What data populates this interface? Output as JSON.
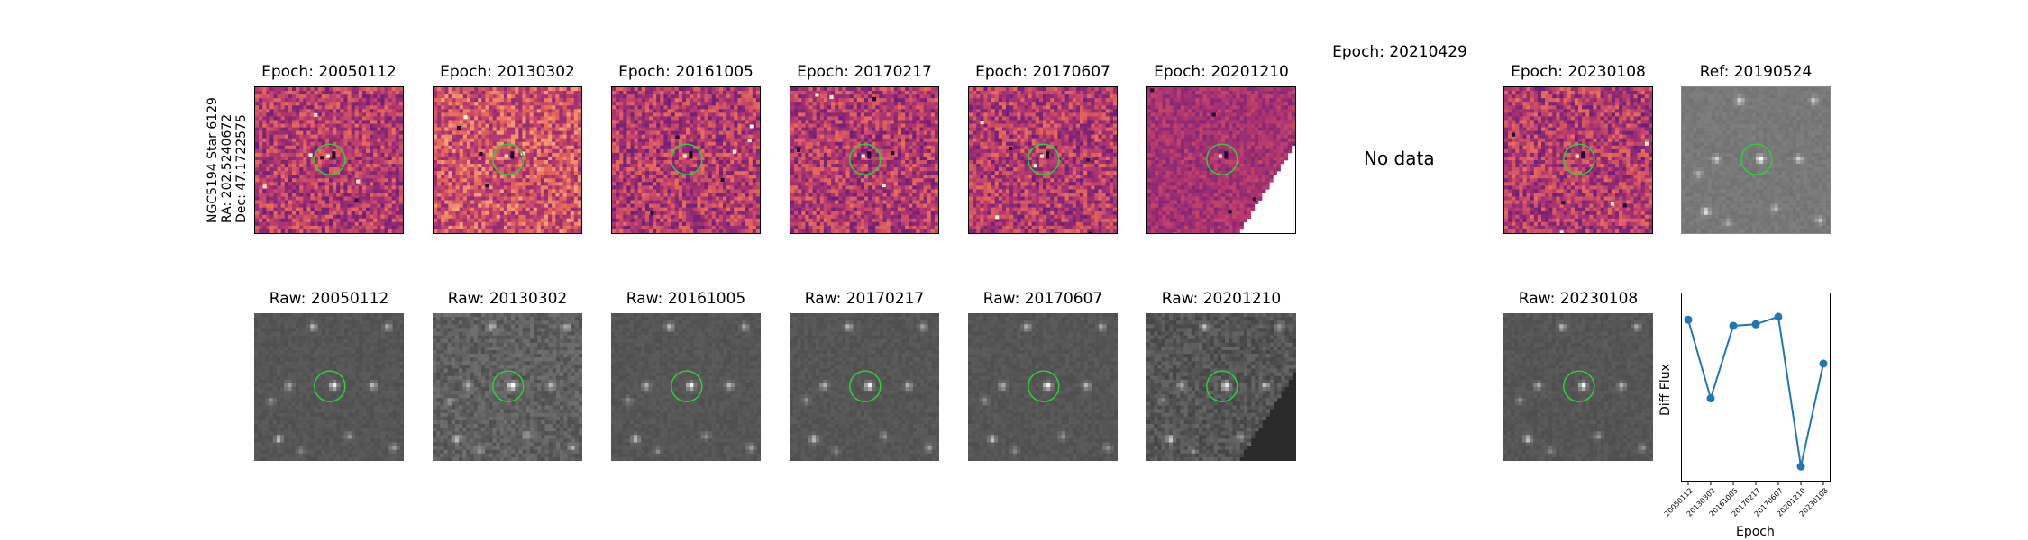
{
  "object_label": [
    "NGC5194 Star 6129",
    "RA: 202.5240672",
    "Dec: 47.1722575"
  ],
  "diff_titles": [
    "Epoch: 20050112",
    "Epoch: 20130302",
    "Epoch: 20161005",
    "Epoch: 20170217",
    "Epoch: 20170607",
    "Epoch: 20201210",
    "Epoch: 20210429",
    "Epoch: 20230108"
  ],
  "ref_title": "Ref: 20190524",
  "no_data_text": "No data",
  "raw_titles": [
    "Raw: 20050112",
    "Raw: 20130302",
    "Raw: 20161005",
    "Raw: 20170217",
    "Raw: 20170607",
    "Raw: 20201210",
    "Raw: 20230108"
  ],
  "colors": {
    "circle": "#2ecc40",
    "line": "#1f77b4"
  },
  "chart_data": {
    "type": "line",
    "categories": [
      "20050112",
      "20130302",
      "20161005",
      "20170217",
      "20170607",
      "20201210",
      "20230108"
    ],
    "series": [
      {
        "values": [
          0.82,
          0.3,
          0.78,
          0.79,
          0.84,
          -0.15,
          0.53
        ]
      }
    ],
    "xlabel": "Epoch",
    "ylabel": "Diff Flux",
    "ylim": [
      -0.25,
      1.0
    ],
    "grid": false
  }
}
